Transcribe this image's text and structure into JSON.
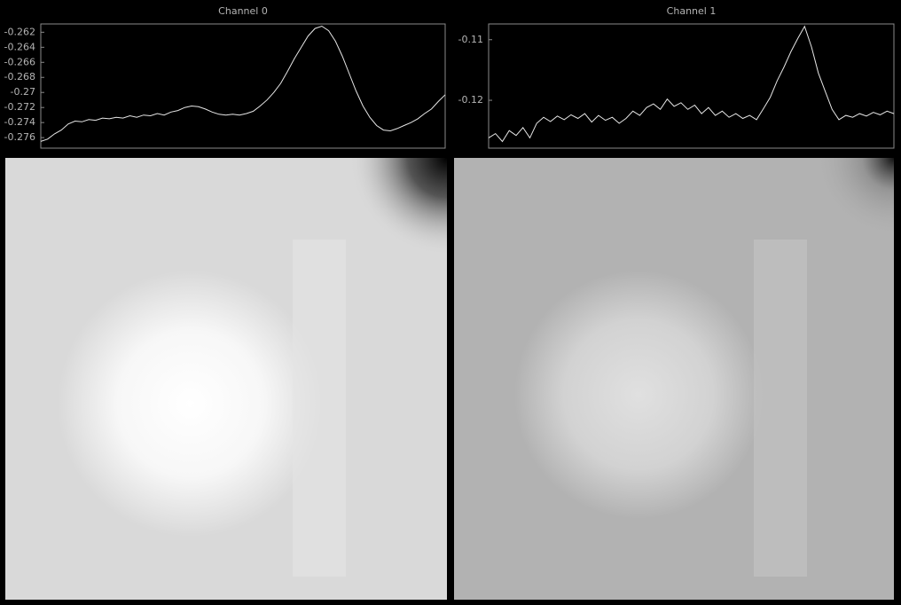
{
  "chart_data": [
    {
      "type": "line",
      "title": "Channel 0",
      "color": "#e6e6e6",
      "ylim": [
        -0.2774,
        -0.2609
      ],
      "yticks": [
        -0.262,
        -0.264,
        -0.266,
        -0.268,
        -0.27,
        -0.272,
        -0.274,
        -0.276
      ],
      "values": [
        -0.2765,
        -0.2762,
        -0.2755,
        -0.275,
        -0.2742,
        -0.2738,
        -0.2739,
        -0.2736,
        -0.2737,
        -0.2734,
        -0.2735,
        -0.2733,
        -0.2734,
        -0.2731,
        -0.2733,
        -0.273,
        -0.2731,
        -0.2728,
        -0.273,
        -0.2726,
        -0.2724,
        -0.272,
        -0.2718,
        -0.2719,
        -0.2722,
        -0.2726,
        -0.2729,
        -0.273,
        -0.2729,
        -0.273,
        -0.2728,
        -0.2725,
        -0.2718,
        -0.271,
        -0.27,
        -0.2688,
        -0.2672,
        -0.2655,
        -0.264,
        -0.2625,
        -0.2615,
        -0.2612,
        -0.2618,
        -0.2632,
        -0.2652,
        -0.2675,
        -0.2698,
        -0.2718,
        -0.2733,
        -0.2744,
        -0.275,
        -0.2751,
        -0.2748,
        -0.2744,
        -0.274,
        -0.2735,
        -0.2728,
        -0.2722,
        -0.2712,
        -0.2703
      ]
    },
    {
      "type": "line",
      "title": "Channel 1",
      "color": "#e6e6e6",
      "ylim": [
        -0.1279,
        -0.1074
      ],
      "yticks": [
        -0.11,
        -0.12
      ],
      "values": [
        -0.1262,
        -0.1255,
        -0.1268,
        -0.125,
        -0.1258,
        -0.1245,
        -0.1262,
        -0.1238,
        -0.1228,
        -0.1235,
        -0.1226,
        -0.1232,
        -0.1224,
        -0.123,
        -0.1222,
        -0.1236,
        -0.1225,
        -0.1233,
        -0.1228,
        -0.1238,
        -0.123,
        -0.1218,
        -0.1225,
        -0.1212,
        -0.1206,
        -0.1215,
        -0.1198,
        -0.121,
        -0.1204,
        -0.1215,
        -0.1208,
        -0.1222,
        -0.1212,
        -0.1225,
        -0.1218,
        -0.1228,
        -0.1222,
        -0.123,
        -0.1225,
        -0.1232,
        -0.1214,
        -0.1195,
        -0.1168,
        -0.1145,
        -0.112,
        -0.1098,
        -0.1078,
        -0.1112,
        -0.1155,
        -0.1185,
        -0.1215,
        -0.1232,
        -0.1225,
        -0.1228,
        -0.1222,
        -0.1226,
        -0.122,
        -0.1224,
        -0.1218,
        -0.1222
      ]
    }
  ]
}
